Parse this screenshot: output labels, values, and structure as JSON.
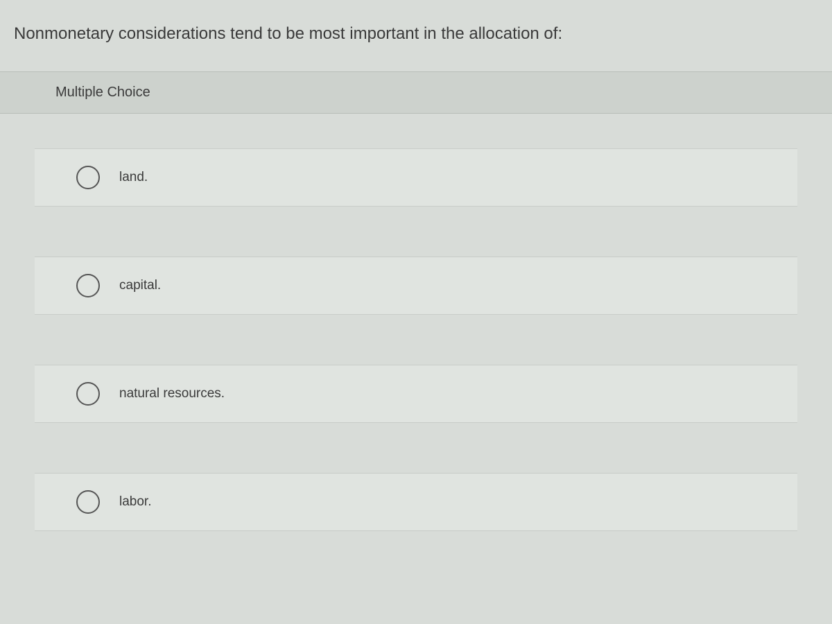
{
  "question_text": "Nonmonetary considerations tend to be most important in the allocation of:",
  "section_header": "Multiple Choice",
  "options": [
    {
      "label": "land."
    },
    {
      "label": "capital."
    },
    {
      "label": "natural resources."
    },
    {
      "label": "labor."
    }
  ],
  "colors": {
    "page_bg": "#d8dcd8",
    "header_bg": "#cdd2cd",
    "option_bg": "#e0e4e0",
    "text": "#3a3a3a",
    "radio_border": "#555555",
    "divider": "#b8bdb8"
  },
  "typography": {
    "question_fontsize": 24,
    "header_fontsize": 20,
    "option_fontsize": 19,
    "font_family": "Arial"
  }
}
